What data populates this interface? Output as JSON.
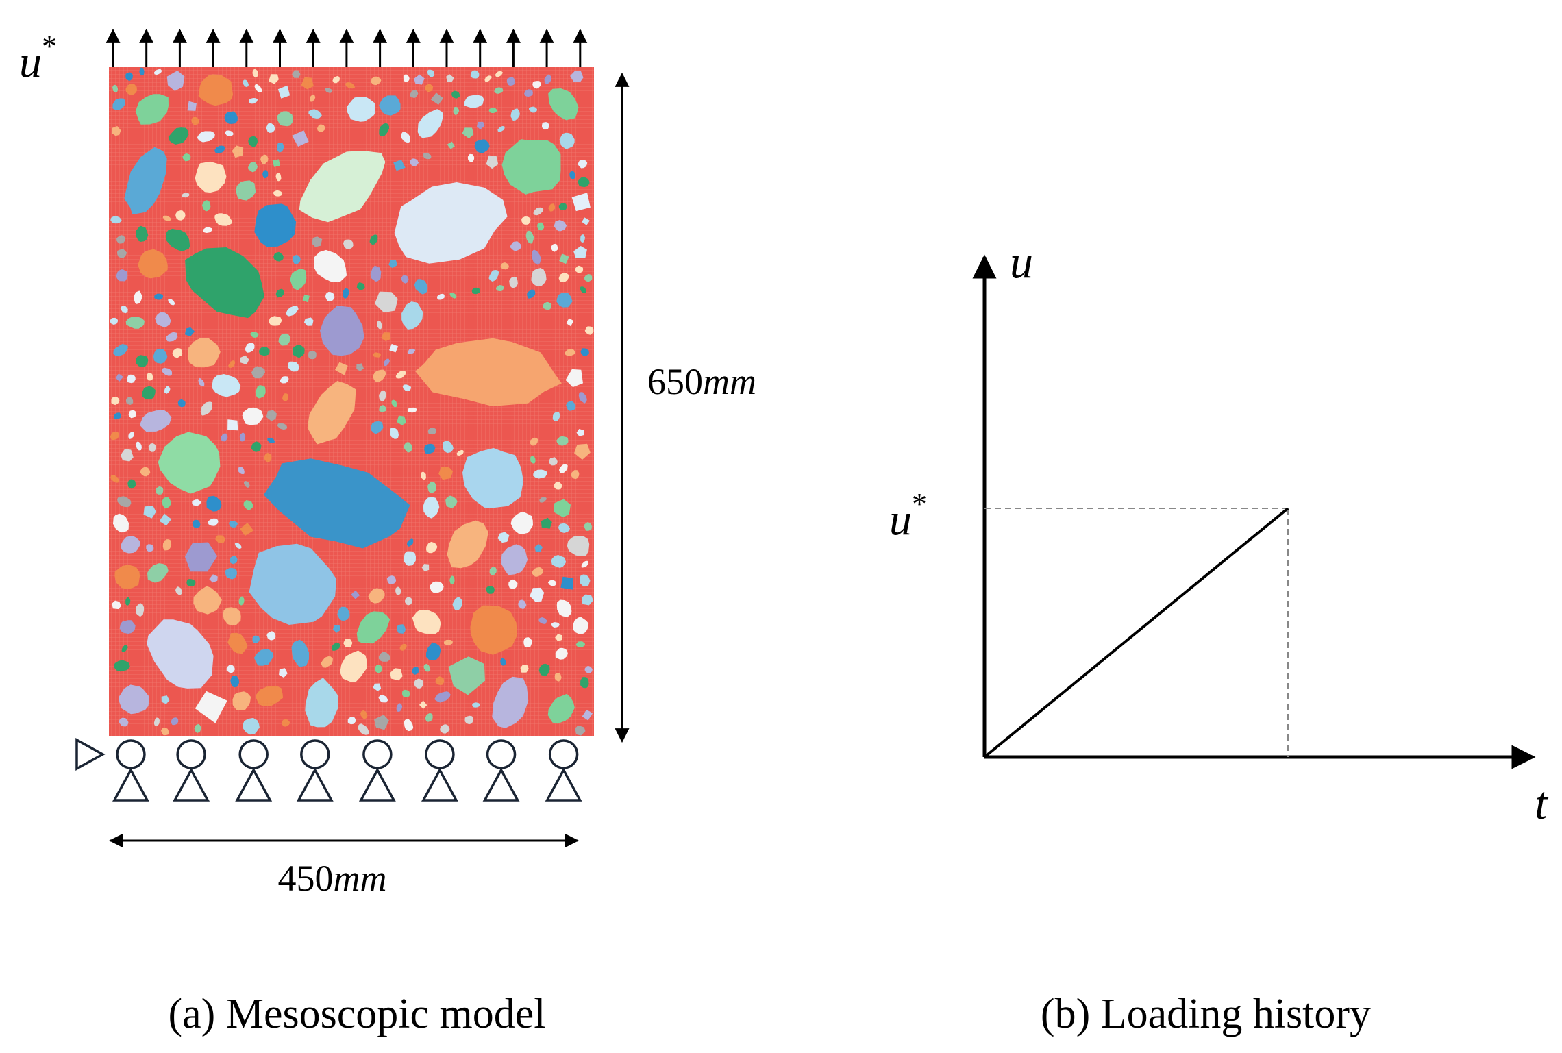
{
  "panel_a": {
    "load_label": {
      "symbol": "u",
      "superscript": "*"
    },
    "height_label": {
      "number": "650",
      "unit": "mm"
    },
    "width_label": {
      "number": "450",
      "unit": "mm"
    },
    "caption": "(a) Mesoscopic model"
  },
  "panel_b": {
    "y_axis_label": "u",
    "peak_label": {
      "symbol": "u",
      "superscript": "*"
    },
    "x_axis_label": "t",
    "caption": "(b) Loading history"
  }
}
